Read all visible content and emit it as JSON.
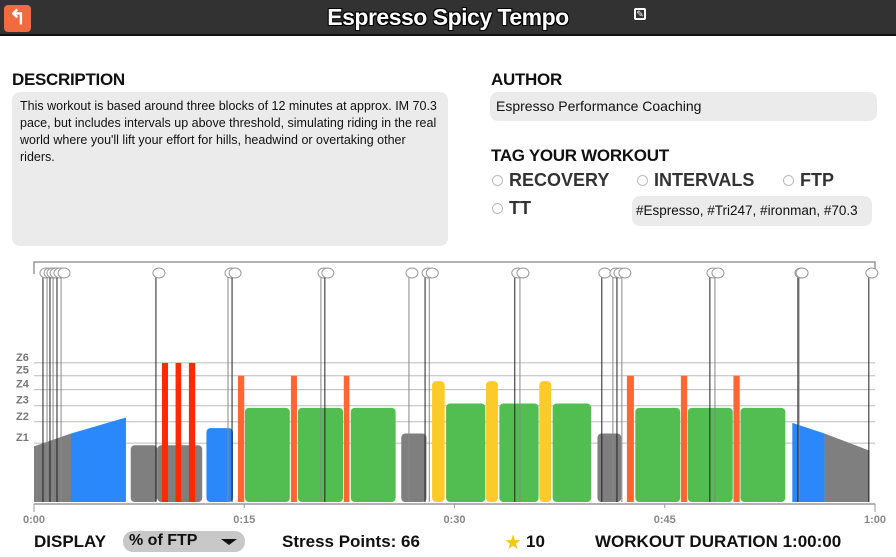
{
  "header": {
    "title": "Espresso Spicy Tempo",
    "back_icon": "back-arrow-icon",
    "edit_icon": "edit-icon"
  },
  "description": {
    "heading": "DESCRIPTION",
    "text": "This workout is based around three blocks of 12 minutes at approx. IM 70.3 pace, but includes intervals up above threshold, simulating riding in the real world where you'll lift your effort for hills, headwind or overtaking other riders."
  },
  "author": {
    "heading": "AUTHOR",
    "value": "Espresso Performance Coaching"
  },
  "tags": {
    "heading": "TAG YOUR WORKOUT",
    "options": [
      "RECOVERY",
      "INTERVALS",
      "FTP",
      "TT"
    ],
    "input_value": "#Espresso, #Tri247, #ironman, #70.3"
  },
  "footer": {
    "display_label": "DISPLAY",
    "display_value": "% of FTP",
    "stress_points": "Stress Points: 66",
    "rating": "10",
    "duration": "WORKOUT DURATION 1:00:00"
  },
  "colors": {
    "gray": "#7f7f7f",
    "blue": "#2a88fb",
    "green": "#52be52",
    "yellow": "#fccb2a",
    "orange": "#ff6632",
    "red": "#ff2a00"
  },
  "chart_data": {
    "type": "bar",
    "xlabel": "",
    "ylabel": "",
    "x_unit": "minutes",
    "y_unit": "% of FTP",
    "xlim": [
      0,
      60
    ],
    "x_ticks": [
      "0:00",
      "0:15",
      "0:30",
      "0:45",
      "1:00"
    ],
    "zones": [
      {
        "label": "Z1",
        "value": 55
      },
      {
        "label": "Z2",
        "value": 75
      },
      {
        "label": "Z3",
        "value": 90
      },
      {
        "label": "Z4",
        "value": 105
      },
      {
        "label": "Z5",
        "value": 118
      },
      {
        "label": "Z6",
        "value": 130
      }
    ],
    "segments": [
      {
        "start": 0,
        "end": 2.64,
        "p0": 52,
        "p1": 64,
        "color": "gray"
      },
      {
        "start": 2.64,
        "end": 6.56,
        "p0": 64,
        "p1": 79,
        "color": "blue"
      },
      {
        "start": 6.9,
        "end": 8.8,
        "p0": 53,
        "p1": 53,
        "color": "gray"
      },
      {
        "start": 8.8,
        "end": 12.0,
        "p0": 53,
        "p1": 53,
        "color": "gray"
      },
      {
        "start": 9.13,
        "end": 9.56,
        "p0": 130,
        "p1": 130,
        "color": "red"
      },
      {
        "start": 10.1,
        "end": 10.5,
        "p0": 130,
        "p1": 130,
        "color": "red"
      },
      {
        "start": 11.05,
        "end": 11.5,
        "p0": 130,
        "p1": 130,
        "color": "red"
      },
      {
        "start": 12.3,
        "end": 14.2,
        "p0": 69,
        "p1": 69,
        "color": "blue"
      },
      {
        "start": 14.55,
        "end": 15.0,
        "p0": 118,
        "p1": 118,
        "color": "orange"
      },
      {
        "start": 15.05,
        "end": 18.25,
        "p0": 88,
        "p1": 88,
        "color": "green"
      },
      {
        "start": 18.33,
        "end": 18.76,
        "p0": 118,
        "p1": 118,
        "color": "orange"
      },
      {
        "start": 18.83,
        "end": 22.05,
        "p0": 88,
        "p1": 88,
        "color": "green"
      },
      {
        "start": 22.1,
        "end": 22.5,
        "p0": 118,
        "p1": 118,
        "color": "orange"
      },
      {
        "start": 22.6,
        "end": 25.8,
        "p0": 88,
        "p1": 88,
        "color": "green"
      },
      {
        "start": 26.2,
        "end": 28.0,
        "p0": 64,
        "p1": 64,
        "color": "gray"
      },
      {
        "start": 28.4,
        "end": 29.3,
        "p0": 113,
        "p1": 113,
        "color": "yellow"
      },
      {
        "start": 29.4,
        "end": 32.2,
        "p0": 92,
        "p1": 92,
        "color": "green"
      },
      {
        "start": 32.25,
        "end": 33.1,
        "p0": 113,
        "p1": 113,
        "color": "yellow"
      },
      {
        "start": 33.2,
        "end": 36.0,
        "p0": 92,
        "p1": 92,
        "color": "green"
      },
      {
        "start": 36.05,
        "end": 36.9,
        "p0": 113,
        "p1": 113,
        "color": "yellow"
      },
      {
        "start": 37.0,
        "end": 39.75,
        "p0": 92,
        "p1": 92,
        "color": "green"
      },
      {
        "start": 40.2,
        "end": 41.9,
        "p0": 64,
        "p1": 64,
        "color": "gray"
      },
      {
        "start": 42.3,
        "end": 42.8,
        "p0": 118,
        "p1": 118,
        "color": "orange"
      },
      {
        "start": 42.9,
        "end": 46.1,
        "p0": 88,
        "p1": 88,
        "color": "green"
      },
      {
        "start": 46.15,
        "end": 46.6,
        "p0": 118,
        "p1": 118,
        "color": "orange"
      },
      {
        "start": 46.65,
        "end": 49.85,
        "p0": 88,
        "p1": 88,
        "color": "green"
      },
      {
        "start": 49.9,
        "end": 50.35,
        "p0": 118,
        "p1": 118,
        "color": "orange"
      },
      {
        "start": 50.4,
        "end": 53.6,
        "p0": 88,
        "p1": 88,
        "color": "green"
      },
      {
        "start": 54.1,
        "end": 56.4,
        "p0": 74,
        "p1": 64,
        "color": "blue"
      },
      {
        "start": 56.4,
        "end": 59.6,
        "p0": 64,
        "p1": 48,
        "color": "gray"
      }
    ],
    "text_events": [
      0.64,
      0.93,
      1.14,
      1.36,
      1.64,
      1.93,
      8.7,
      13.84,
      14.13,
      20.47,
      20.75,
      26.75,
      27.9,
      28.2,
      34.3,
      34.67,
      40.51,
      41.3,
      41.59,
      41.94,
      48.22,
      48.58,
      54.5,
      54.58,
      59.56
    ]
  }
}
